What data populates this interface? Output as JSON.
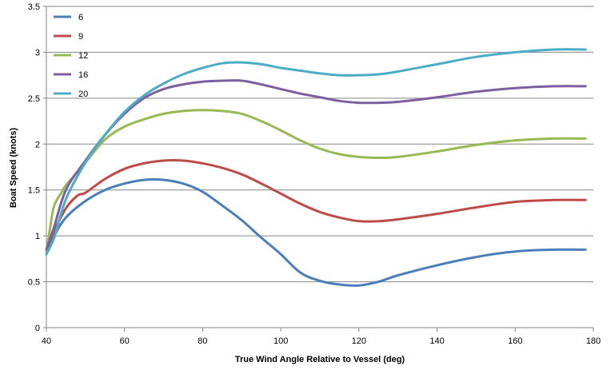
{
  "chart_data": {
    "type": "line",
    "title": "",
    "xlabel": "True Wind Angle Relative to Vessel (deg)",
    "ylabel": "Boat Speed (knots)",
    "xlim": [
      40,
      180
    ],
    "ylim": [
      0,
      3.5
    ],
    "x_ticks": [
      "40",
      "60",
      "80",
      "100",
      "120",
      "140",
      "160",
      "180"
    ],
    "y_ticks": [
      "0",
      "0.5",
      "1",
      "1.5",
      "2",
      "2.5",
      "3",
      "3.5"
    ],
    "grid": "horizontal",
    "legend_position": "top-left",
    "series": [
      {
        "name": "6",
        "color": "#4a7ebb",
        "x": [
          40,
          42,
          45,
          50,
          55,
          60,
          65,
          70,
          75,
          80,
          85,
          90,
          95,
          100,
          105,
          110,
          115,
          120,
          125,
          130,
          140,
          150,
          160,
          170,
          178
        ],
        "y": [
          0.8,
          1.0,
          1.2,
          1.38,
          1.5,
          1.57,
          1.61,
          1.61,
          1.57,
          1.48,
          1.33,
          1.17,
          0.98,
          0.8,
          0.6,
          0.51,
          0.47,
          0.46,
          0.5,
          0.57,
          0.68,
          0.77,
          0.83,
          0.85,
          0.85
        ]
      },
      {
        "name": "9",
        "color": "#be4b48",
        "x": [
          40,
          42,
          45,
          48,
          50,
          55,
          60,
          65,
          70,
          75,
          80,
          85,
          90,
          95,
          100,
          105,
          110,
          115,
          120,
          125,
          130,
          140,
          150,
          160,
          170,
          178
        ],
        "y": [
          0.85,
          1.05,
          1.3,
          1.44,
          1.47,
          1.62,
          1.73,
          1.79,
          1.82,
          1.82,
          1.79,
          1.74,
          1.67,
          1.57,
          1.46,
          1.35,
          1.26,
          1.2,
          1.16,
          1.16,
          1.18,
          1.24,
          1.31,
          1.37,
          1.39,
          1.39
        ]
      },
      {
        "name": "12",
        "color": "#98b954",
        "x": [
          40,
          41,
          42,
          44,
          45,
          50,
          55,
          60,
          65,
          70,
          75,
          80,
          85,
          90,
          95,
          100,
          105,
          110,
          115,
          120,
          125,
          130,
          140,
          150,
          160,
          170,
          178
        ],
        "y": [
          0.8,
          1.1,
          1.33,
          1.48,
          1.55,
          1.8,
          2.05,
          2.19,
          2.27,
          2.33,
          2.36,
          2.37,
          2.36,
          2.33,
          2.25,
          2.15,
          2.04,
          1.95,
          1.89,
          1.86,
          1.85,
          1.86,
          1.92,
          1.99,
          2.04,
          2.06,
          2.06
        ]
      },
      {
        "name": "16",
        "color": "#7d5fa0",
        "x": [
          40,
          42,
          45,
          50,
          55,
          60,
          65,
          70,
          75,
          80,
          85,
          90,
          95,
          100,
          105,
          110,
          115,
          120,
          125,
          130,
          140,
          150,
          160,
          170,
          178
        ],
        "y": [
          0.85,
          1.1,
          1.5,
          1.82,
          2.1,
          2.33,
          2.5,
          2.6,
          2.65,
          2.68,
          2.69,
          2.69,
          2.65,
          2.6,
          2.55,
          2.51,
          2.47,
          2.45,
          2.45,
          2.46,
          2.51,
          2.57,
          2.61,
          2.63,
          2.63
        ]
      },
      {
        "name": "20",
        "color": "#4bacc6",
        "x": [
          40,
          42,
          45,
          50,
          55,
          60,
          65,
          70,
          75,
          80,
          85,
          90,
          95,
          100,
          105,
          110,
          115,
          120,
          125,
          130,
          140,
          150,
          160,
          170,
          178
        ],
        "y": [
          0.8,
          0.98,
          1.4,
          1.8,
          2.1,
          2.35,
          2.53,
          2.66,
          2.76,
          2.83,
          2.88,
          2.89,
          2.87,
          2.83,
          2.8,
          2.77,
          2.75,
          2.75,
          2.76,
          2.79,
          2.87,
          2.95,
          3.0,
          3.03,
          3.03
        ]
      }
    ]
  }
}
